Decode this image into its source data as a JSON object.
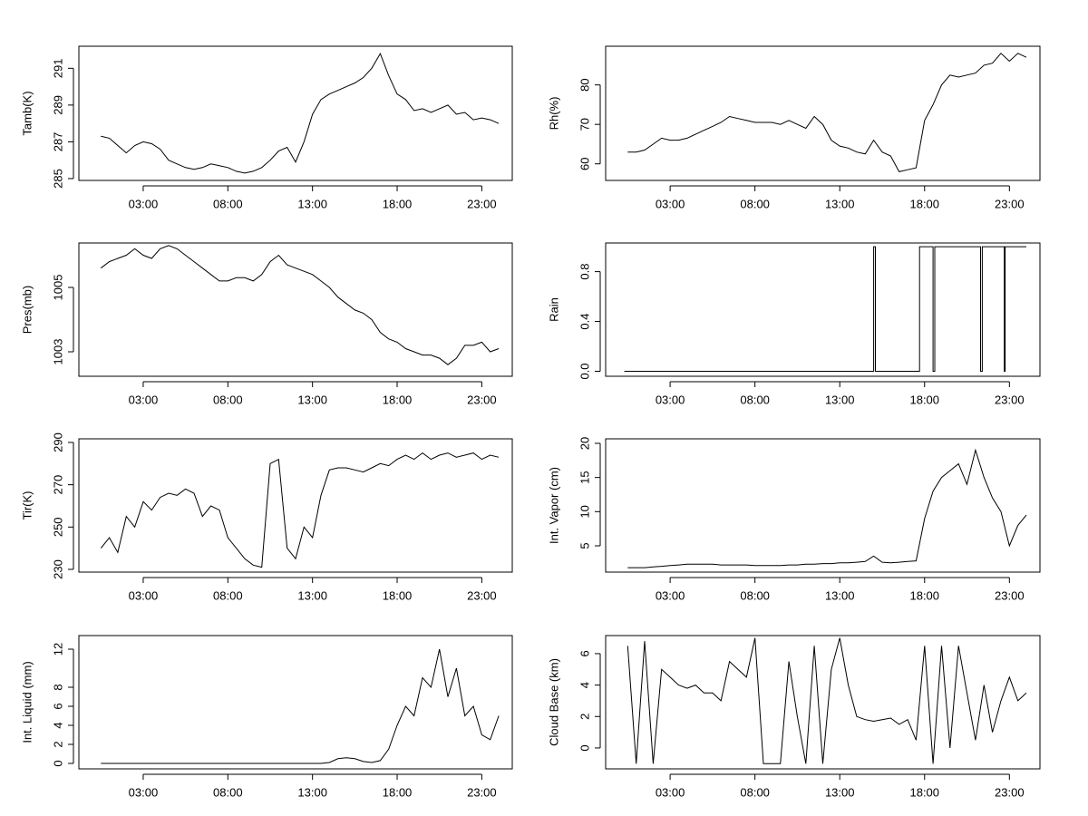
{
  "chart_data": [
    {
      "type": "line",
      "ylabel": "Tamb(K)",
      "color": "#000000",
      "x": [
        0.5,
        1,
        1.5,
        2,
        2.5,
        3,
        3.5,
        4,
        4.5,
        5,
        5.5,
        6,
        6.5,
        7,
        7.5,
        8,
        8.5,
        9,
        9.5,
        10,
        10.5,
        11,
        11.5,
        12,
        12.5,
        13,
        13.5,
        14,
        14.5,
        15,
        15.5,
        16,
        16.5,
        17,
        17.5,
        18,
        18.5,
        19,
        19.5,
        20,
        20.5,
        21,
        21.5,
        22,
        22.5,
        23,
        23.5,
        24
      ],
      "values": [
        287.3,
        287.2,
        286.8,
        286.4,
        286.8,
        287.0,
        286.9,
        286.6,
        286.0,
        285.8,
        285.6,
        285.5,
        285.6,
        285.8,
        285.7,
        285.6,
        285.4,
        285.3,
        285.4,
        285.6,
        286.0,
        286.5,
        286.7,
        285.9,
        287.0,
        288.5,
        289.3,
        289.6,
        289.8,
        290.0,
        290.2,
        290.5,
        291.0,
        291.8,
        290.6,
        289.6,
        289.3,
        288.7,
        288.8,
        288.6,
        288.8,
        289.0,
        288.5,
        288.6,
        288.2,
        288.3,
        288.2,
        288.0
      ],
      "xlim": [
        -0.8,
        24.8
      ],
      "xticks": [
        {
          "value": 3,
          "label": "03:00"
        },
        {
          "value": 8,
          "label": "08:00"
        },
        {
          "value": 13,
          "label": "13:00"
        },
        {
          "value": 18,
          "label": "18:00"
        },
        {
          "value": 23,
          "label": "23:00"
        }
      ],
      "ylim": [
        284.9,
        292.2
      ],
      "yticks": [
        285,
        287,
        289,
        291
      ]
    },
    {
      "type": "line",
      "ylabel": "Rh(%)",
      "color": "#000000",
      "x": [
        0.5,
        1,
        1.5,
        2,
        2.5,
        3,
        3.5,
        4,
        4.5,
        5,
        5.5,
        6,
        6.5,
        7,
        7.5,
        8,
        8.5,
        9,
        9.5,
        10,
        10.5,
        11,
        11.5,
        12,
        12.5,
        13,
        13.5,
        14,
        14.5,
        15,
        15.5,
        16,
        16.5,
        17,
        17.5,
        18,
        18.5,
        19,
        19.5,
        20,
        20.5,
        21,
        21.5,
        22,
        22.5,
        23,
        23.5,
        24
      ],
      "values": [
        63,
        63,
        63.5,
        65,
        66.5,
        66,
        66,
        66.5,
        67.5,
        68.5,
        69.5,
        70.5,
        72,
        71.5,
        71,
        70.5,
        70.5,
        70.5,
        70,
        71,
        70,
        69,
        72,
        70,
        66,
        64.5,
        64,
        63,
        62.5,
        66,
        63,
        62,
        58,
        58.5,
        59,
        71,
        75,
        80,
        82.5,
        82,
        82.5,
        83,
        85,
        85.5,
        88,
        86,
        88,
        87
      ],
      "xlim": [
        -0.8,
        24.8
      ],
      "xticks": [
        {
          "value": 3,
          "label": "03:00"
        },
        {
          "value": 8,
          "label": "08:00"
        },
        {
          "value": 13,
          "label": "13:00"
        },
        {
          "value": 18,
          "label": "18:00"
        },
        {
          "value": 23,
          "label": "23:00"
        }
      ],
      "ylim": [
        55.8,
        89.8
      ],
      "yticks": [
        60,
        70,
        80
      ]
    },
    {
      "type": "line",
      "ylabel": "Pres(mb)",
      "color": "#000000",
      "x": [
        0.5,
        1,
        1.5,
        2,
        2.5,
        3,
        3.5,
        4,
        4.5,
        5,
        5.5,
        6,
        6.5,
        7,
        7.5,
        8,
        8.5,
        9,
        9.5,
        10,
        10.5,
        11,
        11.5,
        12,
        12.5,
        13,
        13.5,
        14,
        14.5,
        15,
        15.5,
        16,
        16.5,
        17,
        17.5,
        18,
        18.5,
        19,
        19.5,
        20,
        20.5,
        21,
        21.5,
        22,
        22.5,
        23,
        23.5,
        24
      ],
      "values": [
        1005.6,
        1005.8,
        1005.9,
        1006.0,
        1006.2,
        1006.0,
        1005.9,
        1006.2,
        1006.3,
        1006.2,
        1006.0,
        1005.8,
        1005.6,
        1005.4,
        1005.2,
        1005.2,
        1005.3,
        1005.3,
        1005.2,
        1005.4,
        1005.8,
        1006.0,
        1005.7,
        1005.6,
        1005.5,
        1005.4,
        1005.2,
        1005.0,
        1004.7,
        1004.5,
        1004.3,
        1004.2,
        1004.0,
        1003.6,
        1003.4,
        1003.3,
        1003.1,
        1003.0,
        1002.9,
        1002.9,
        1002.8,
        1002.6,
        1002.8,
        1003.2,
        1003.2,
        1003.3,
        1003.0,
        1003.1
      ],
      "xlim": [
        -0.8,
        24.8
      ],
      "xticks": [
        {
          "value": 3,
          "label": "03:00"
        },
        {
          "value": 8,
          "label": "08:00"
        },
        {
          "value": 13,
          "label": "13:00"
        },
        {
          "value": 18,
          "label": "18:00"
        },
        {
          "value": 23,
          "label": "23:00"
        }
      ],
      "ylim": [
        1002.24,
        1006.38
      ],
      "yticks": [
        1003,
        1005
      ]
    },
    {
      "type": "line",
      "ylabel": "Rain",
      "color": "#000000",
      "x": [
        0.3,
        15.0,
        15.0,
        15.1,
        15.1,
        17.7,
        17.7,
        18.5,
        18.5,
        18.6,
        18.6,
        21.3,
        21.3,
        21.4,
        21.4,
        22.7,
        22.7,
        22.75,
        22.75,
        24
      ],
      "values": [
        0,
        0,
        1,
        1,
        0,
        0,
        1,
        1,
        0,
        0,
        1,
        1,
        0,
        0,
        1,
        1,
        0,
        0,
        1,
        1
      ],
      "xlim": [
        -0.8,
        24.8
      ],
      "xticks": [
        {
          "value": 3,
          "label": "03:00"
        },
        {
          "value": 8,
          "label": "08:00"
        },
        {
          "value": 13,
          "label": "13:00"
        },
        {
          "value": 18,
          "label": "18:00"
        },
        {
          "value": 23,
          "label": "23:00"
        }
      ],
      "ylim": [
        -0.04,
        1.03
      ],
      "yticks": [
        {
          "value": 0,
          "label": "0.0"
        },
        0.4,
        0.8
      ]
    },
    {
      "type": "line",
      "ylabel": "Tir(K)",
      "color": "#000000",
      "x": [
        0.5,
        1,
        1.5,
        2,
        2.5,
        3,
        3.5,
        4,
        4.5,
        5,
        5.5,
        6,
        6.5,
        7,
        7.5,
        8,
        8.5,
        9,
        9.5,
        10,
        10.5,
        11,
        11.5,
        12,
        12.5,
        13,
        13.5,
        14,
        14.5,
        15,
        15.5,
        16,
        16.5,
        17,
        17.5,
        18,
        18.5,
        19,
        19.5,
        20,
        20.5,
        21,
        21.5,
        22,
        22.5,
        23,
        23.5,
        24
      ],
      "values": [
        240,
        245,
        238,
        255,
        250,
        262,
        258,
        264,
        266,
        265,
        268,
        266,
        255,
        260,
        258,
        245,
        240,
        235,
        232,
        231,
        280,
        282,
        240,
        235,
        250,
        245,
        265,
        277,
        278,
        278,
        277,
        276,
        278,
        280,
        279,
        282,
        284,
        282,
        285,
        282,
        284,
        285,
        283,
        284,
        285,
        282,
        284,
        283
      ],
      "xlim": [
        -0.8,
        24.8
      ],
      "xticks": [
        {
          "value": 3,
          "label": "03:00"
        },
        {
          "value": 8,
          "label": "08:00"
        },
        {
          "value": 13,
          "label": "13:00"
        },
        {
          "value": 18,
          "label": "18:00"
        },
        {
          "value": 23,
          "label": "23:00"
        }
      ],
      "ylim": [
        228.7,
        291.7
      ],
      "yticks": [
        230,
        250,
        270,
        290
      ]
    },
    {
      "type": "line",
      "ylabel": "Int. Vapor (cm)",
      "color": "#000000",
      "x": [
        0.5,
        1,
        1.5,
        2,
        2.5,
        3,
        3.5,
        4,
        4.5,
        5,
        5.5,
        6,
        6.5,
        7,
        7.5,
        8,
        8.5,
        9,
        9.5,
        10,
        10.5,
        11,
        11.5,
        12,
        12.5,
        13,
        13.5,
        14,
        14.5,
        15,
        15.5,
        16,
        16.5,
        17,
        17.5,
        18,
        18.5,
        19,
        19.5,
        20,
        20.5,
        21,
        21.5,
        22,
        22.5,
        23,
        23.5,
        24
      ],
      "values": [
        1.8,
        1.8,
        1.8,
        1.9,
        2.0,
        2.1,
        2.2,
        2.3,
        2.3,
        2.3,
        2.3,
        2.2,
        2.2,
        2.2,
        2.2,
        2.1,
        2.1,
        2.1,
        2.1,
        2.2,
        2.2,
        2.3,
        2.3,
        2.4,
        2.4,
        2.5,
        2.5,
        2.6,
        2.7,
        3.5,
        2.6,
        2.5,
        2.6,
        2.7,
        2.8,
        9,
        13,
        15,
        16,
        17,
        14,
        19,
        15,
        12,
        10,
        5,
        8,
        9.5
      ],
      "xlim": [
        -0.8,
        24.8
      ],
      "xticks": [
        {
          "value": 3,
          "label": "03:00"
        },
        {
          "value": 8,
          "label": "08:00"
        },
        {
          "value": 13,
          "label": "13:00"
        },
        {
          "value": 18,
          "label": "18:00"
        },
        {
          "value": 23,
          "label": "23:00"
        }
      ],
      "ylim": [
        1.15,
        20.66
      ],
      "yticks": [
        5,
        10,
        15,
        20
      ]
    },
    {
      "type": "line",
      "ylabel": "Int. Liquid (mm)",
      "color": "#000000",
      "x": [
        0.5,
        1,
        1.5,
        2,
        2.5,
        3,
        3.5,
        4,
        4.5,
        5,
        5.5,
        6,
        6.5,
        7,
        7.5,
        8,
        8.5,
        9,
        9.5,
        10,
        10.5,
        11,
        11.5,
        12,
        12.5,
        13,
        13.5,
        14,
        14.5,
        15,
        15.5,
        16,
        16.5,
        17,
        17.5,
        18,
        18.5,
        19,
        19.5,
        20,
        20.5,
        21,
        21.5,
        22,
        22.5,
        23,
        23.5,
        24
      ],
      "values": [
        0,
        0,
        0,
        0,
        0,
        0,
        0,
        0,
        0,
        0,
        0,
        0,
        0,
        0,
        0,
        0,
        0,
        0,
        0,
        0,
        0,
        0,
        0,
        0,
        0,
        0,
        0,
        0.1,
        0.5,
        0.6,
        0.5,
        0.2,
        0.1,
        0.3,
        1.5,
        4,
        6,
        5,
        9,
        8,
        12,
        7,
        10,
        5,
        6,
        3,
        2.5,
        5
      ],
      "xlim": [
        -0.8,
        24.8
      ],
      "xticks": [
        {
          "value": 3,
          "label": "03:00"
        },
        {
          "value": 8,
          "label": "08:00"
        },
        {
          "value": 13,
          "label": "13:00"
        },
        {
          "value": 18,
          "label": "18:00"
        },
        {
          "value": 23,
          "label": "23:00"
        }
      ],
      "ylim": [
        -0.57,
        13.43
      ],
      "yticks": [
        0,
        2,
        4,
        6,
        8,
        12
      ]
    },
    {
      "type": "line",
      "ylabel": "Cloud Base (km)",
      "color": "#000000",
      "x": [
        0.5,
        1,
        1.5,
        2,
        2.5,
        3,
        3.5,
        4,
        4.5,
        5,
        5.5,
        6,
        6.5,
        7,
        7.5,
        8,
        8.5,
        9,
        9.5,
        10,
        10.5,
        11,
        11.5,
        12,
        12.5,
        13,
        13.5,
        14,
        14.5,
        15,
        15.5,
        16,
        16.5,
        17,
        17.5,
        18,
        18.5,
        19,
        19.5,
        20,
        20.5,
        21,
        21.5,
        22,
        22.5,
        23,
        23.5,
        24
      ],
      "values": [
        6.5,
        -1,
        6.8,
        -1,
        5,
        4.5,
        4,
        3.8,
        4,
        3.5,
        3.5,
        3,
        5.5,
        5,
        4.5,
        7,
        -1,
        -1,
        -1,
        5.5,
        2,
        -1,
        6.5,
        -1,
        5,
        7,
        4,
        2,
        1.8,
        1.7,
        1.8,
        1.9,
        1.5,
        1.8,
        0.5,
        6.5,
        -1,
        6.5,
        0,
        6.5,
        3.5,
        0.5,
        4,
        1,
        3,
        4.5,
        3,
        3.5
      ],
      "xlim": [
        -0.8,
        24.8
      ],
      "xticks": [
        {
          "value": 3,
          "label": "03:00"
        },
        {
          "value": 8,
          "label": "08:00"
        },
        {
          "value": 13,
          "label": "13:00"
        },
        {
          "value": 18,
          "label": "18:00"
        },
        {
          "value": 23,
          "label": "23:00"
        }
      ],
      "ylim": [
        -1.33,
        7.15
      ],
      "yticks": [
        0,
        2,
        4,
        6
      ]
    }
  ]
}
